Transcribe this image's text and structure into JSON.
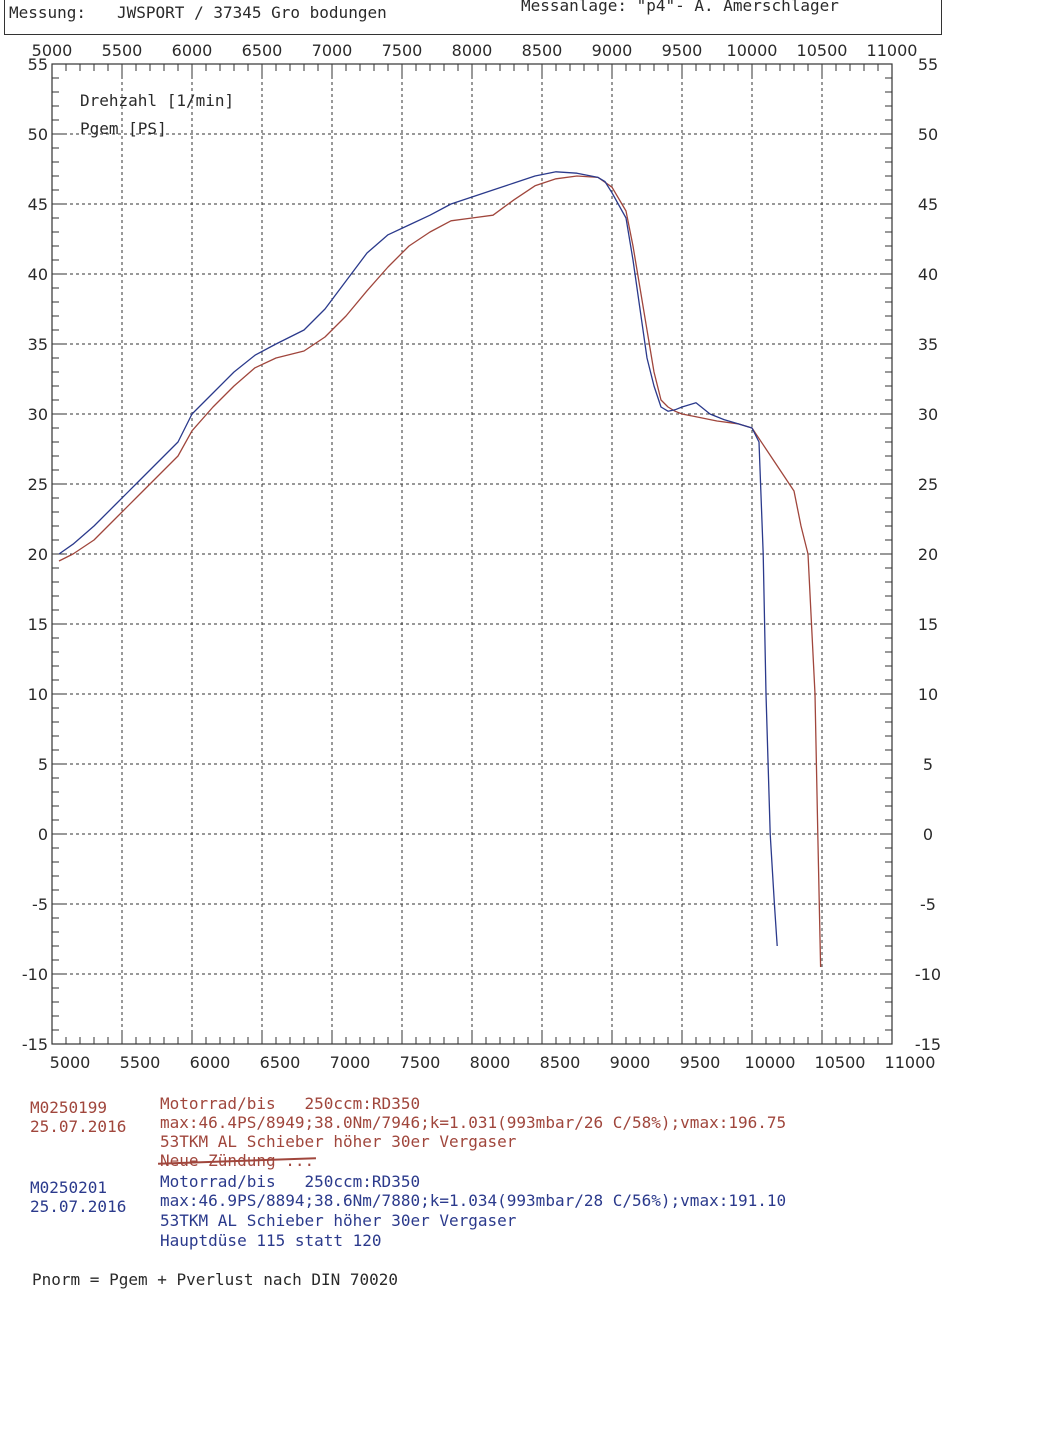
{
  "header": {
    "messung_label": "Messung:",
    "messung_value": "JWSPORT / 37345 Gro bodungen",
    "messanlage": "Messanlage: \"p4\"- A. Amerschlager"
  },
  "legend": {
    "line1": "Drehzahl [1/min]",
    "line2": "Pgem [PS]"
  },
  "chart_data": {
    "type": "line",
    "xlabel": "Drehzahl [1/min]",
    "ylabel": "Pgem [PS]",
    "xlim": [
      5000,
      11000
    ],
    "ylim": [
      -15,
      55
    ],
    "x_ticks": [
      5000,
      5500,
      6000,
      6500,
      7000,
      7500,
      8000,
      8500,
      9000,
      9500,
      10000,
      10500,
      11000
    ],
    "y_ticks": [
      55,
      50,
      45,
      40,
      35,
      30,
      25,
      20,
      15,
      10,
      5,
      0,
      -5,
      -10,
      -15
    ],
    "grid": true,
    "series": [
      {
        "name": "M0250199",
        "color": "#a0463c",
        "x": [
          5050,
          5150,
          5300,
          5450,
          5600,
          5750,
          5900,
          6000,
          6150,
          6300,
          6450,
          6600,
          6800,
          6950,
          7100,
          7250,
          7400,
          7550,
          7700,
          7850,
          8000,
          8150,
          8300,
          8450,
          8600,
          8750,
          8900,
          9000,
          9100,
          9150,
          9200,
          9250,
          9300,
          9350,
          9400,
          9450,
          9500,
          9600,
          9750,
          9900,
          10000,
          10100,
          10200,
          10300,
          10350,
          10400,
          10450,
          10470,
          10490
        ],
        "y": [
          19.5,
          20.0,
          21.0,
          22.5,
          24.0,
          25.5,
          27.0,
          28.8,
          30.5,
          32.0,
          33.3,
          34.0,
          34.5,
          35.5,
          37.0,
          38.8,
          40.5,
          42.0,
          43.0,
          43.8,
          44.0,
          44.2,
          45.3,
          46.3,
          46.8,
          47.0,
          46.9,
          46.2,
          44.5,
          42.0,
          39.0,
          36.0,
          33.0,
          31.0,
          30.5,
          30.2,
          30.0,
          29.8,
          29.5,
          29.3,
          29.0,
          27.5,
          26.0,
          24.5,
          22.0,
          20.0,
          10.0,
          0.0,
          -9.5
        ]
      },
      {
        "name": "M0250201",
        "color": "#2b3a8c",
        "x": [
          5050,
          5150,
          5300,
          5450,
          5600,
          5750,
          5900,
          6000,
          6150,
          6300,
          6450,
          6600,
          6800,
          6950,
          7100,
          7250,
          7400,
          7550,
          7700,
          7850,
          8000,
          8150,
          8300,
          8450,
          8600,
          8750,
          8900,
          8950,
          9000,
          9100,
          9150,
          9200,
          9250,
          9300,
          9350,
          9400,
          9450,
          9500,
          9600,
          9700,
          9800,
          9900,
          10000,
          10050,
          10080,
          10100,
          10130,
          10160,
          10180
        ],
        "y": [
          20.0,
          20.7,
          22.0,
          23.5,
          25.0,
          26.5,
          28.0,
          30.0,
          31.5,
          33.0,
          34.2,
          35.0,
          36.0,
          37.5,
          39.5,
          41.5,
          42.8,
          43.5,
          44.2,
          45.0,
          45.5,
          46.0,
          46.5,
          47.0,
          47.3,
          47.2,
          46.9,
          46.6,
          45.8,
          44.0,
          41.0,
          37.5,
          34.0,
          32.0,
          30.5,
          30.2,
          30.3,
          30.5,
          30.8,
          30.0,
          29.6,
          29.3,
          29.0,
          28.0,
          20.0,
          10.0,
          0.0,
          -5.0,
          -8.0
        ]
      }
    ]
  },
  "records": [
    {
      "id": "M0250199",
      "date": "25.07.2016",
      "line1": "Motorrad/bis   250ccm:RD350",
      "line2": "max:46.4PS/8949;38.0Nm/7946;k=1.031(993mbar/26 C/58%);vmax:196.75",
      "line3": "53TKM AL Schieber höher 30er Vergaser",
      "line4": "Neue Zündung ..."
    },
    {
      "id": "M0250201",
      "date": "25.07.2016",
      "line1": "Motorrad/bis   250ccm:RD350",
      "line2": "max:46.9PS/8894;38.6Nm/7880;k=1.034(993mbar/28 C/56%);vmax:191.10",
      "line3": "53TKM AL Schieber höher 30er Vergaser",
      "line4": "Hauptdüse 115 statt 120"
    }
  ],
  "footer": "Pnorm = Pgem + Pverlust nach DIN 70020"
}
